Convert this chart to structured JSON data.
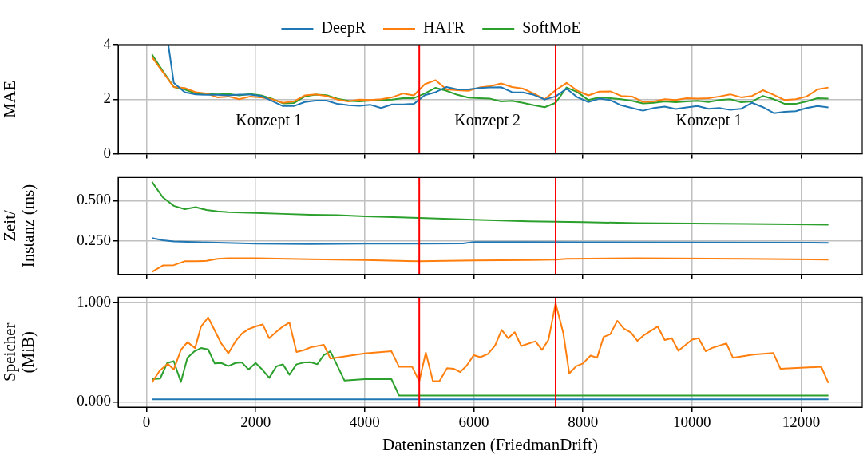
{
  "chart_data": [
    {
      "type": "line",
      "ylabel": "MAE",
      "legend": "top",
      "grid": true,
      "tick_labels": "y",
      "xlim": [
        -520,
        13120
      ],
      "xticks": [
        0,
        2000,
        4000,
        6000,
        8000,
        10000,
        12000
      ],
      "ylim": [
        0,
        4
      ],
      "yticks": [
        0,
        2,
        4
      ],
      "x": [
        100,
        300,
        500,
        700,
        900,
        1100,
        1300,
        1500,
        1700,
        1900,
        2100,
        2300,
        2500,
        2700,
        2900,
        3100,
        3300,
        3500,
        3700,
        3900,
        4100,
        4300,
        4500,
        4700,
        4900,
        5100,
        5300,
        5500,
        5700,
        5900,
        6100,
        6300,
        6500,
        6700,
        6900,
        7100,
        7300,
        7500,
        7700,
        7900,
        8100,
        8300,
        8500,
        8700,
        8900,
        9100,
        9300,
        9500,
        9700,
        9900,
        10100,
        10300,
        10500,
        10700,
        10900,
        11100,
        11300,
        11500,
        11700,
        11900,
        12100,
        12300,
        12500
      ],
      "series": [
        {
          "name": "DeepR",
          "color": "#1f77b4",
          "x": [
            400,
            500,
            700,
            900,
            1100,
            1300,
            1500,
            1700,
            1900,
            2100,
            2300,
            2500,
            2700,
            2900,
            3100,
            3300,
            3500,
            3700,
            3900,
            4100,
            4300,
            4500,
            4700,
            4900,
            5100,
            5300,
            5500,
            5700,
            5900,
            6100,
            6300,
            6500,
            6700,
            6900,
            7100,
            7300,
            7500,
            7700,
            7900,
            8100,
            8300,
            8500,
            8700,
            8900,
            9100,
            9300,
            9500,
            9700,
            9900,
            10100,
            10300,
            10500,
            10700,
            10900,
            11100,
            11300,
            11500,
            11700,
            11900,
            12100,
            12300,
            12500
          ],
          "values": [
            4.0,
            2.6,
            2.26,
            2.18,
            2.16,
            2.16,
            2.14,
            2.17,
            2.17,
            2.12,
            1.94,
            1.75,
            1.75,
            1.9,
            1.95,
            1.95,
            1.83,
            1.78,
            1.76,
            1.8,
            1.68,
            1.81,
            1.81,
            1.83,
            2.15,
            2.26,
            2.45,
            2.36,
            2.36,
            2.41,
            2.43,
            2.44,
            2.26,
            2.25,
            2.16,
            1.99,
            2.1,
            2.39,
            2.07,
            1.9,
            2.02,
            1.97,
            1.78,
            1.68,
            1.58,
            1.68,
            1.73,
            1.64,
            1.7,
            1.75,
            1.65,
            1.68,
            1.61,
            1.65,
            1.87,
            1.71,
            1.49,
            1.54,
            1.56,
            1.68,
            1.75,
            1.7
          ]
        },
        {
          "name": "HATR",
          "color": "#ff7f0e",
          "values": [
            3.55,
            2.99,
            2.45,
            2.41,
            2.26,
            2.21,
            2.07,
            2.1,
            2.0,
            2.1,
            2.07,
            2.0,
            1.87,
            1.92,
            2.14,
            2.18,
            2.12,
            1.99,
            1.92,
            1.99,
            1.97,
            2.0,
            2.07,
            2.21,
            2.14,
            2.55,
            2.7,
            2.36,
            2.33,
            2.31,
            2.43,
            2.48,
            2.58,
            2.45,
            2.39,
            2.21,
            2.0,
            2.33,
            2.6,
            2.31,
            2.14,
            2.28,
            2.29,
            2.12,
            2.1,
            1.9,
            1.92,
            2.0,
            1.97,
            2.04,
            2.02,
            2.04,
            2.1,
            2.18,
            2.07,
            2.12,
            2.33,
            2.16,
            1.97,
            2.0,
            2.1,
            2.36,
            2.43
          ]
        },
        {
          "name": "SoftMoE",
          "color": "#2ca02c",
          "values": [
            3.64,
            3.03,
            2.45,
            2.36,
            2.21,
            2.19,
            2.18,
            2.19,
            2.14,
            2.19,
            2.14,
            2.02,
            1.85,
            1.86,
            2.1,
            2.17,
            2.15,
            2.02,
            1.94,
            1.92,
            1.95,
            1.97,
            1.99,
            2.04,
            2.04,
            2.21,
            2.42,
            2.31,
            2.16,
            2.06,
            2.04,
            2.02,
            1.92,
            1.94,
            1.87,
            1.78,
            1.71,
            1.87,
            2.43,
            2.26,
            1.97,
            2.07,
            2.04,
            2.0,
            1.94,
            1.85,
            1.87,
            1.92,
            1.89,
            1.92,
            1.94,
            1.9,
            1.97,
            2.0,
            1.89,
            1.92,
            2.12,
            2.0,
            1.83,
            1.83,
            1.92,
            2.04,
            2.02
          ]
        }
      ],
      "ref_lines": [
        {
          "axis": "x",
          "value": 5000,
          "color": "#ff0000"
        },
        {
          "axis": "x",
          "value": 7500,
          "color": "#ff0000"
        }
      ],
      "annotations": [
        "Konzept 1",
        "Konzept 2",
        "Konzept 1"
      ]
    },
    {
      "type": "line",
      "ylabel": "Zeit/\nInstanz (ms)",
      "grid": true,
      "tick_labels": "y",
      "xlim": [
        -520,
        13120
      ],
      "xticks": [
        0,
        2000,
        4000,
        6000,
        8000,
        10000,
        12000
      ],
      "ylim": [
        0.04,
        0.645
      ],
      "yticks": [
        {
          "value": 0.25,
          "label": "0.250"
        },
        {
          "value": 0.5,
          "label": "0.500"
        }
      ],
      "series": [
        {
          "color": "#1f77b4",
          "x": [
            100,
            300,
            500,
            1000,
            2000,
            3000,
            4000,
            5000,
            5800,
            6000,
            7000,
            8000,
            12500
          ],
          "values": [
            0.266,
            0.253,
            0.245,
            0.24,
            0.232,
            0.229,
            0.232,
            0.232,
            0.233,
            0.242,
            0.242,
            0.24,
            0.237
          ]
        },
        {
          "color": "#ff7f0e",
          "x": [
            100,
            300,
            500,
            700,
            900,
            1100,
            1300,
            1500,
            2000,
            3000,
            4000,
            5000,
            6000,
            7000,
            7500,
            7700,
            9000,
            11000,
            12500
          ],
          "values": [
            0.055,
            0.095,
            0.097,
            0.121,
            0.121,
            0.124,
            0.137,
            0.14,
            0.14,
            0.134,
            0.129,
            0.121,
            0.126,
            0.129,
            0.132,
            0.137,
            0.14,
            0.137,
            0.132
          ]
        },
        {
          "color": "#2ca02c",
          "x": [
            100,
            300,
            500,
            700,
            900,
            1100,
            1300,
            1500,
            2000,
            2500,
            3000,
            3500,
            4000,
            5000,
            6000,
            7000,
            8000,
            9000,
            10000,
            11000,
            12500
          ],
          "values": [
            0.618,
            0.521,
            0.468,
            0.447,
            0.46,
            0.442,
            0.434,
            0.429,
            0.424,
            0.418,
            0.413,
            0.41,
            0.403,
            0.392,
            0.381,
            0.371,
            0.366,
            0.36,
            0.358,
            0.355,
            0.35
          ]
        }
      ],
      "ref_lines": [
        {
          "axis": "x",
          "value": 5000,
          "color": "#ff0000"
        },
        {
          "axis": "x",
          "value": 7500,
          "color": "#ff0000"
        }
      ]
    },
    {
      "type": "line",
      "xlabel": "Dateninstanzen (FriedmanDrift)",
      "ylabel": "Speicher\n(MiB)",
      "grid": true,
      "xlim": [
        -520,
        13120
      ],
      "xticks": [
        0,
        2000,
        4000,
        6000,
        8000,
        10000,
        12000
      ],
      "ylim": [
        -0.054,
        1.054
      ],
      "yticks": [
        {
          "value": 0,
          "label": "0.000"
        },
        {
          "value": 1,
          "label": "1.000"
        }
      ],
      "series": [
        {
          "color": "#1f77b4",
          "x": [
            100,
            12500
          ],
          "values": [
            0.024,
            0.024
          ]
        },
        {
          "color": "#ff7f0e",
          "x": [
            100,
            240,
            390,
            500,
            630,
            750,
            890,
            1000,
            1130,
            1250,
            1370,
            1500,
            1630,
            1750,
            1870,
            2000,
            2130,
            2250,
            2380,
            2500,
            2620,
            2750,
            2890,
            3010,
            3250,
            3370,
            4000,
            4490,
            4630,
            4870,
            5000,
            5120,
            5250,
            5370,
            5510,
            5630,
            5750,
            5870,
            6000,
            6120,
            6260,
            6390,
            6510,
            6630,
            6750,
            6870,
            7130,
            7250,
            7370,
            7500,
            7640,
            7750,
            7880,
            8000,
            8140,
            8260,
            8380,
            8500,
            8630,
            8750,
            8880,
            9000,
            9120,
            9370,
            9500,
            9630,
            9750,
            10000,
            10120,
            10250,
            10370,
            10630,
            10750,
            11120,
            11490,
            11620,
            12370,
            12500
          ],
          "values": [
            0.194,
            0.312,
            0.383,
            0.325,
            0.522,
            0.601,
            0.541,
            0.759,
            0.85,
            0.719,
            0.588,
            0.488,
            0.609,
            0.688,
            0.732,
            0.759,
            0.78,
            0.64,
            0.706,
            0.759,
            0.798,
            0.501,
            0.522,
            0.549,
            0.574,
            0.436,
            0.488,
            0.509,
            0.352,
            0.352,
            0.207,
            0.496,
            0.207,
            0.207,
            0.339,
            0.333,
            0.299,
            0.365,
            0.47,
            0.449,
            0.483,
            0.567,
            0.724,
            0.64,
            0.701,
            0.562,
            0.609,
            0.522,
            0.627,
            0.995,
            0.693,
            0.286,
            0.36,
            0.386,
            0.465,
            0.444,
            0.654,
            0.68,
            0.816,
            0.738,
            0.698,
            0.614,
            0.672,
            0.759,
            0.622,
            0.64,
            0.514,
            0.627,
            0.64,
            0.509,
            0.543,
            0.588,
            0.444,
            0.475,
            0.491,
            0.333,
            0.352,
            0.189
          ]
        },
        {
          "color": "#2ca02c",
          "x": [
            100,
            250,
            380,
            500,
            630,
            750,
            880,
            1000,
            1130,
            1250,
            1370,
            1500,
            1630,
            1750,
            1870,
            2000,
            2130,
            2250,
            2380,
            2500,
            2620,
            2750,
            2890,
            3010,
            3130,
            3250,
            3370,
            3630,
            4000,
            4490,
            4630,
            12500
          ],
          "values": [
            0.228,
            0.234,
            0.391,
            0.409,
            0.199,
            0.444,
            0.509,
            0.541,
            0.528,
            0.386,
            0.391,
            0.36,
            0.391,
            0.396,
            0.325,
            0.391,
            0.32,
            0.241,
            0.357,
            0.378,
            0.273,
            0.378,
            0.396,
            0.399,
            0.378,
            0.47,
            0.509,
            0.213,
            0.228,
            0.228,
            0.063,
            0.063
          ]
        }
      ],
      "ref_lines": [
        {
          "axis": "x",
          "value": 5000,
          "color": "#ff0000"
        },
        {
          "axis": "x",
          "value": 7500,
          "color": "#ff0000"
        }
      ]
    }
  ]
}
